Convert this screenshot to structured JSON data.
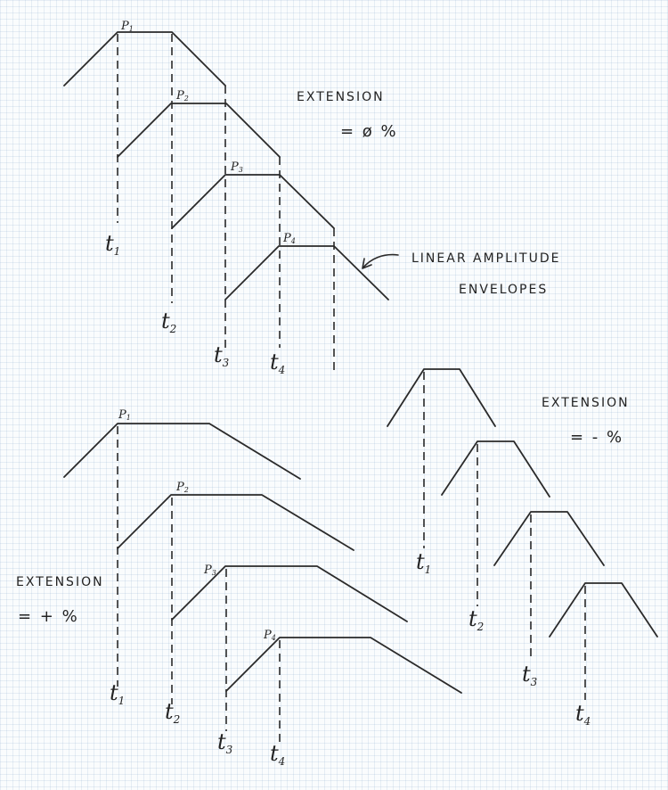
{
  "panels": {
    "zero": {
      "label": [
        "EXTENSION",
        "= ø %"
      ],
      "peaks": [
        {
          "main": "P",
          "sub": "1"
        },
        {
          "main": "P",
          "sub": "2"
        },
        {
          "main": "P",
          "sub": "3"
        },
        {
          "main": "P",
          "sub": "4"
        }
      ],
      "times": [
        {
          "main": "t",
          "sub": "1"
        },
        {
          "main": "t",
          "sub": "2"
        },
        {
          "main": "t",
          "sub": "3"
        },
        {
          "main": "t",
          "sub": "4"
        }
      ]
    },
    "plus": {
      "label": [
        "EXTENSION",
        "= + %"
      ],
      "peaks": [
        {
          "main": "P",
          "sub": "1"
        },
        {
          "main": "P",
          "sub": "2"
        },
        {
          "main": "P",
          "sub": "3"
        },
        {
          "main": "P",
          "sub": "4"
        }
      ],
      "times": [
        {
          "main": "t",
          "sub": "1"
        },
        {
          "main": "t",
          "sub": "2"
        },
        {
          "main": "t",
          "sub": "3"
        },
        {
          "main": "t",
          "sub": "4"
        }
      ]
    },
    "minus": {
      "label": [
        "EXTENSION",
        "= - %"
      ],
      "times": [
        {
          "main": "t",
          "sub": "1"
        },
        {
          "main": "t",
          "sub": "2"
        },
        {
          "main": "t",
          "sub": "3"
        },
        {
          "main": "t",
          "sub": "4"
        }
      ]
    }
  },
  "annotation": [
    "LINEAR AMPLITUDE",
    "ENVELOPES"
  ],
  "colors": {
    "ink": "#2a2a2a",
    "paper": "#fafcfd",
    "grid": "#9fbcd8"
  }
}
